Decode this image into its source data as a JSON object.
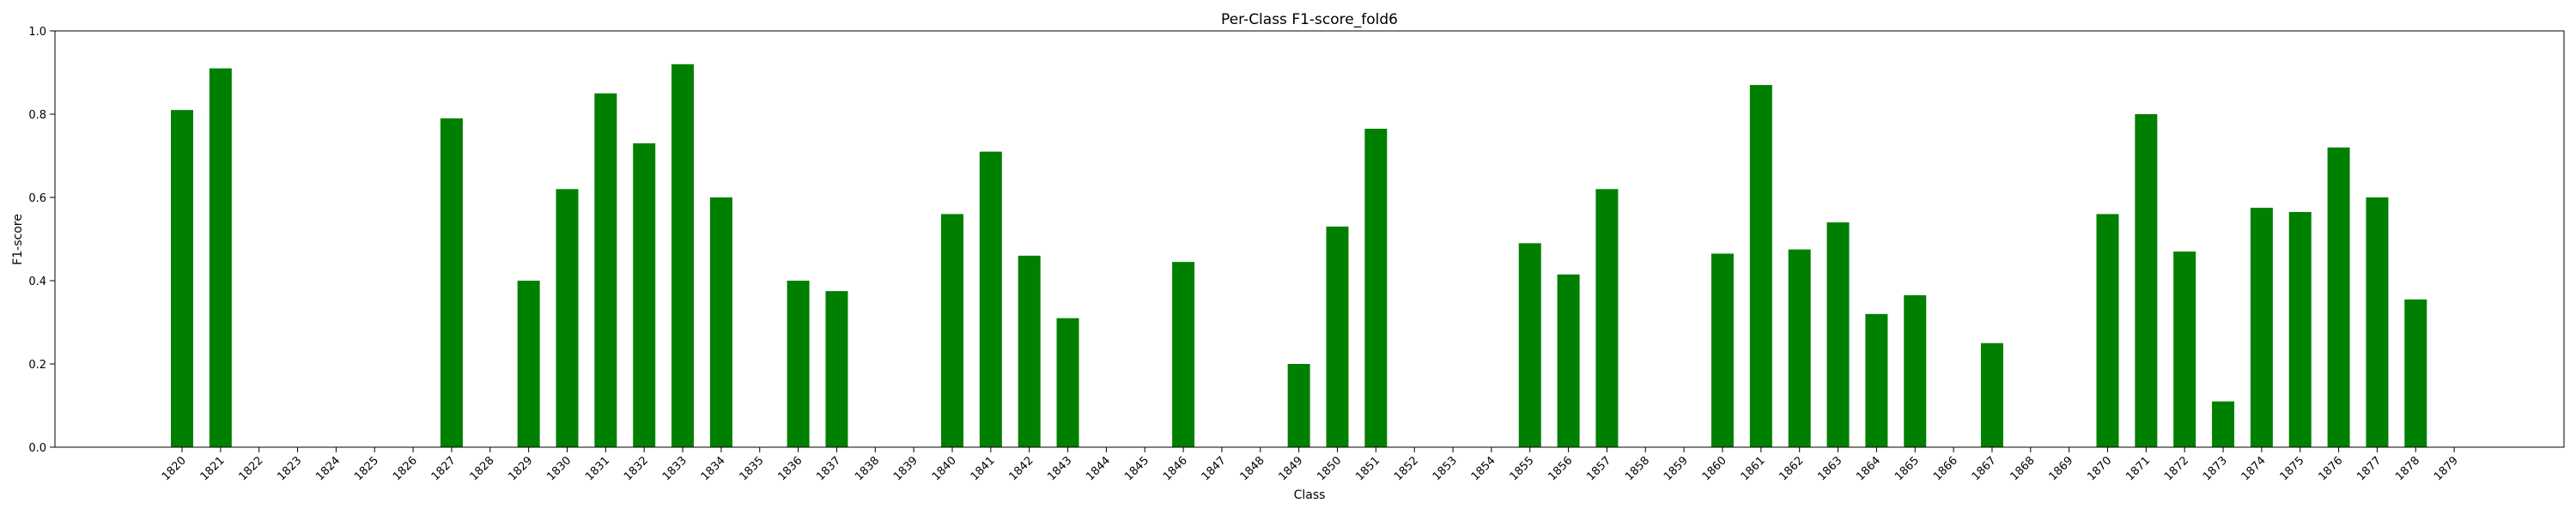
{
  "chart_data": {
    "type": "bar",
    "title": "Per-Class F1-score_fold6",
    "xlabel": "Class",
    "ylabel": "F1-score",
    "ylim": [
      0,
      1.0
    ],
    "yticks": [
      "0.0",
      "0.2",
      "0.4",
      "0.6",
      "0.8",
      "1.0"
    ],
    "grid": false,
    "bar_color": "#008000",
    "categories": [
      "1820",
      "1821",
      "1822",
      "1823",
      "1824",
      "1825",
      "1826",
      "1827",
      "1828",
      "1829",
      "1830",
      "1831",
      "1832",
      "1833",
      "1834",
      "1835",
      "1836",
      "1837",
      "1838",
      "1839",
      "1840",
      "1841",
      "1842",
      "1843",
      "1844",
      "1845",
      "1846",
      "1847",
      "1848",
      "1849",
      "1850",
      "1851",
      "1852",
      "1853",
      "1854",
      "1855",
      "1856",
      "1857",
      "1858",
      "1859",
      "1860",
      "1861",
      "1862",
      "1863",
      "1864",
      "1865",
      "1866",
      "1867",
      "1868",
      "1869",
      "1870",
      "1871",
      "1872",
      "1873",
      "1874",
      "1875",
      "1876",
      "1877",
      "1878",
      "1879"
    ],
    "values": [
      0.81,
      0.91,
      0,
      0,
      0,
      0,
      0,
      0.79,
      0,
      0.4,
      0.62,
      0.85,
      0.73,
      0.92,
      0.6,
      0,
      0.4,
      0.375,
      0,
      0,
      0.56,
      0.71,
      0.46,
      0.31,
      0,
      0,
      0.445,
      0,
      0,
      0.2,
      0.53,
      0.765,
      0,
      0,
      0,
      0.49,
      0.415,
      0.62,
      0,
      0,
      0.465,
      0.87,
      0.475,
      0.54,
      0.32,
      0.365,
      0,
      0.25,
      0,
      0,
      0.56,
      0.8,
      0.47,
      0.11,
      0.575,
      0.565,
      0.72,
      0.6,
      0.355,
      0
    ]
  }
}
